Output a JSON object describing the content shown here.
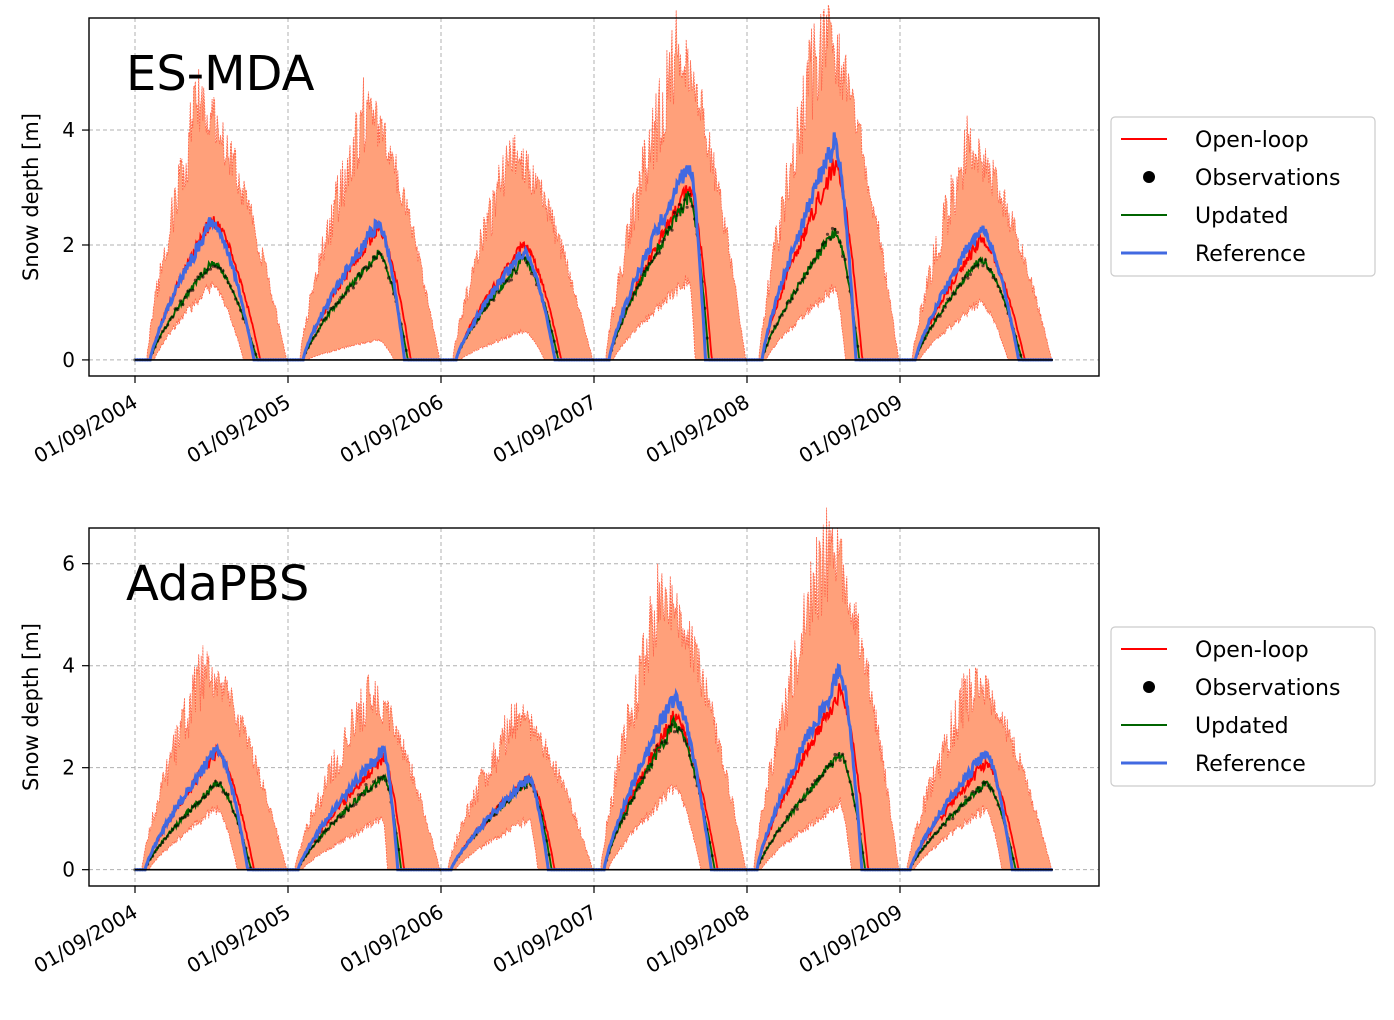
{
  "figure": {
    "ylabel": "Snow depth [m]",
    "colors": {
      "open_loop": "#ff0000",
      "observations": "#000000",
      "updated": "#006400",
      "reference": "#4169e1",
      "ensemble_fill": "#ffa07a",
      "ensemble_edge": "#ff6347"
    },
    "legend": {
      "placement": "right, outside plot",
      "entries": [
        "Open-loop",
        "Observations",
        "Updated",
        "Reference"
      ]
    }
  },
  "chart_data": [
    {
      "type": "line",
      "title": "ES-MDA",
      "ylabel": "Snow depth [m]",
      "x_ticks": [
        "01/09/2004",
        "01/09/2005",
        "01/09/2006",
        "01/09/2007",
        "01/09/2008",
        "01/09/2009"
      ],
      "y_ticks": [
        0,
        2,
        4
      ],
      "ylim": [
        -0.28,
        5.95
      ],
      "grid": true,
      "legend_placement": "right",
      "seasons": [
        {
          "open_loop_peak": 2.45,
          "reference_peak": 2.4,
          "updated_peak": 1.7,
          "ensemble_max": 4.4,
          "ensemble_low_peak": 1.3
        },
        {
          "open_loop_peak": 2.3,
          "reference_peak": 2.4,
          "updated_peak": 1.85,
          "ensemble_max": 4.3,
          "ensemble_low_peak": 0.35
        },
        {
          "open_loop_peak": 2.0,
          "reference_peak": 1.9,
          "updated_peak": 1.75,
          "ensemble_max": 3.6,
          "ensemble_low_peak": 0.5
        },
        {
          "open_loop_peak": 3.0,
          "reference_peak": 3.4,
          "updated_peak": 2.85,
          "ensemble_max": 5.35,
          "ensemble_low_peak": 1.4
        },
        {
          "open_loop_peak": 3.4,
          "reference_peak": 3.8,
          "updated_peak": 2.25,
          "ensemble_max": 5.7,
          "ensemble_low_peak": 1.25
        },
        {
          "open_loop_peak": 2.1,
          "reference_peak": 2.3,
          "updated_peak": 1.75,
          "ensemble_max": 3.7,
          "ensemble_low_peak": 1.0
        }
      ],
      "series": [
        {
          "name": "Open-loop"
        },
        {
          "name": "Observations"
        },
        {
          "name": "Updated"
        },
        {
          "name": "Reference"
        }
      ]
    },
    {
      "type": "line",
      "title": "AdaPBS",
      "ylabel": "Snow depth [m]",
      "x_ticks": [
        "01/09/2004",
        "01/09/2005",
        "01/09/2006",
        "01/09/2007",
        "01/09/2008",
        "01/09/2009"
      ],
      "y_ticks": [
        0,
        2,
        4,
        6
      ],
      "ylim": [
        -0.32,
        6.7
      ],
      "grid": true,
      "legend_placement": "right",
      "seasons": [
        {
          "open_loop_peak": 2.3,
          "reference_peak": 2.35,
          "updated_peak": 1.7,
          "ensemble_max": 3.9,
          "ensemble_low_peak": 1.2
        },
        {
          "open_loop_peak": 2.2,
          "reference_peak": 2.35,
          "updated_peak": 1.85,
          "ensemble_max": 3.4,
          "ensemble_low_peak": 1.0
        },
        {
          "open_loop_peak": 1.8,
          "reference_peak": 1.8,
          "updated_peak": 1.75,
          "ensemble_max": 3.0,
          "ensemble_low_peak": 1.0
        },
        {
          "open_loop_peak": 3.0,
          "reference_peak": 3.4,
          "updated_peak": 2.85,
          "ensemble_max": 5.4,
          "ensemble_low_peak": 1.6
        },
        {
          "open_loop_peak": 3.5,
          "reference_peak": 3.85,
          "updated_peak": 2.25,
          "ensemble_max": 6.35,
          "ensemble_low_peak": 1.3
        },
        {
          "open_loop_peak": 2.1,
          "reference_peak": 2.3,
          "updated_peak": 1.7,
          "ensemble_max": 3.7,
          "ensemble_low_peak": 1.2
        }
      ],
      "series": [
        {
          "name": "Open-loop"
        },
        {
          "name": "Observations"
        },
        {
          "name": "Updated"
        },
        {
          "name": "Reference"
        }
      ]
    }
  ]
}
